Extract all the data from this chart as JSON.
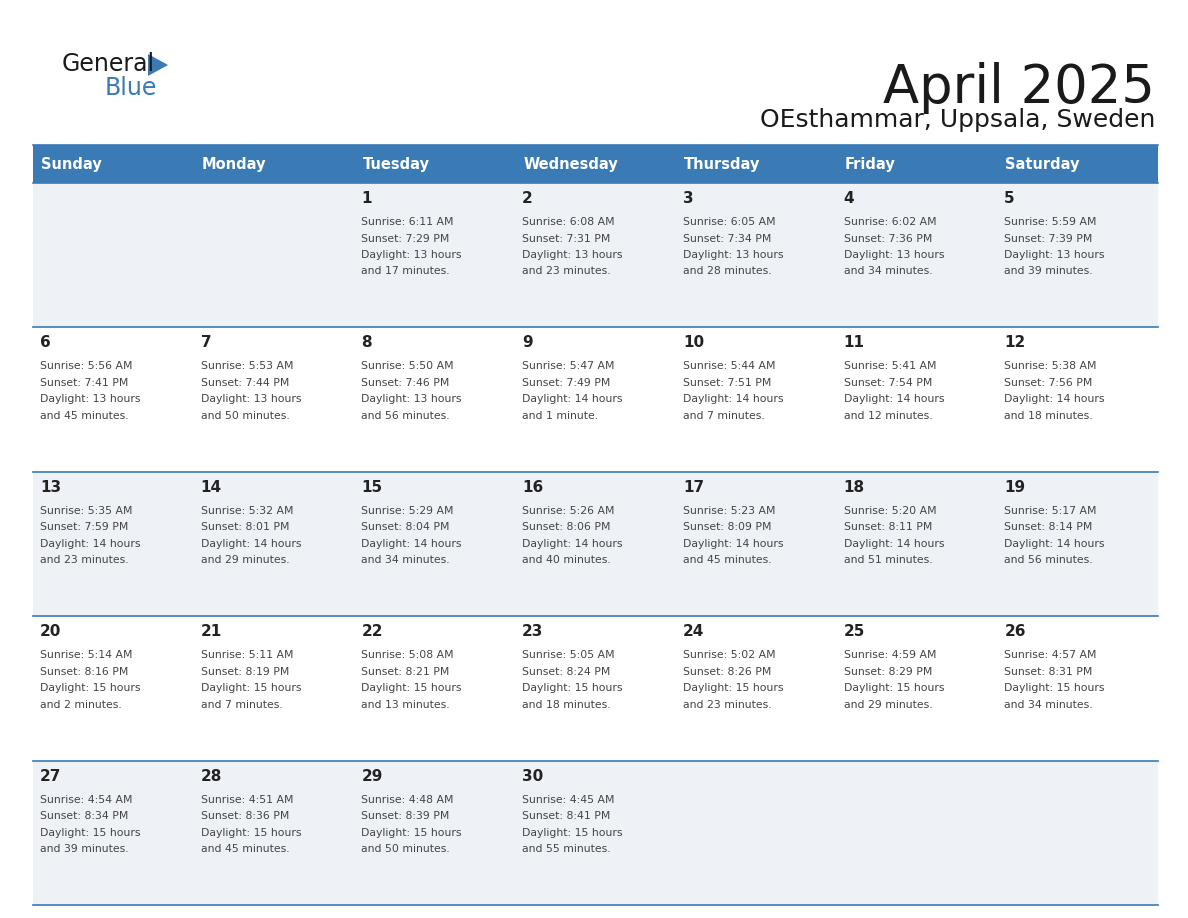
{
  "title": "April 2025",
  "subtitle": "OEsthammar, Uppsala, Sweden",
  "header_color": "#3a7ab5",
  "header_text_color": "#ffffff",
  "cell_bg_even": "#eef2f7",
  "cell_bg_odd": "#ffffff",
  "border_color": "#3a7ab5",
  "day_names": [
    "Sunday",
    "Monday",
    "Tuesday",
    "Wednesday",
    "Thursday",
    "Friday",
    "Saturday"
  ],
  "text_color": "#333333",
  "number_color": "#222222",
  "info_color": "#444444",
  "days": [
    {
      "date": 0,
      "col": 0,
      "row": 0,
      "sunrise": "",
      "sunset": "",
      "daylight": ""
    },
    {
      "date": 0,
      "col": 1,
      "row": 0,
      "sunrise": "",
      "sunset": "",
      "daylight": ""
    },
    {
      "date": 1,
      "col": 2,
      "row": 0,
      "sunrise": "6:11 AM",
      "sunset": "7:29 PM",
      "daylight": "13 hours and 17 minutes."
    },
    {
      "date": 2,
      "col": 3,
      "row": 0,
      "sunrise": "6:08 AM",
      "sunset": "7:31 PM",
      "daylight": "13 hours and 23 minutes."
    },
    {
      "date": 3,
      "col": 4,
      "row": 0,
      "sunrise": "6:05 AM",
      "sunset": "7:34 PM",
      "daylight": "13 hours and 28 minutes."
    },
    {
      "date": 4,
      "col": 5,
      "row": 0,
      "sunrise": "6:02 AM",
      "sunset": "7:36 PM",
      "daylight": "13 hours and 34 minutes."
    },
    {
      "date": 5,
      "col": 6,
      "row": 0,
      "sunrise": "5:59 AM",
      "sunset": "7:39 PM",
      "daylight": "13 hours and 39 minutes."
    },
    {
      "date": 6,
      "col": 0,
      "row": 1,
      "sunrise": "5:56 AM",
      "sunset": "7:41 PM",
      "daylight": "13 hours and 45 minutes."
    },
    {
      "date": 7,
      "col": 1,
      "row": 1,
      "sunrise": "5:53 AM",
      "sunset": "7:44 PM",
      "daylight": "13 hours and 50 minutes."
    },
    {
      "date": 8,
      "col": 2,
      "row": 1,
      "sunrise": "5:50 AM",
      "sunset": "7:46 PM",
      "daylight": "13 hours and 56 minutes."
    },
    {
      "date": 9,
      "col": 3,
      "row": 1,
      "sunrise": "5:47 AM",
      "sunset": "7:49 PM",
      "daylight": "14 hours and 1 minute."
    },
    {
      "date": 10,
      "col": 4,
      "row": 1,
      "sunrise": "5:44 AM",
      "sunset": "7:51 PM",
      "daylight": "14 hours and 7 minutes."
    },
    {
      "date": 11,
      "col": 5,
      "row": 1,
      "sunrise": "5:41 AM",
      "sunset": "7:54 PM",
      "daylight": "14 hours and 12 minutes."
    },
    {
      "date": 12,
      "col": 6,
      "row": 1,
      "sunrise": "5:38 AM",
      "sunset": "7:56 PM",
      "daylight": "14 hours and 18 minutes."
    },
    {
      "date": 13,
      "col": 0,
      "row": 2,
      "sunrise": "5:35 AM",
      "sunset": "7:59 PM",
      "daylight": "14 hours and 23 minutes."
    },
    {
      "date": 14,
      "col": 1,
      "row": 2,
      "sunrise": "5:32 AM",
      "sunset": "8:01 PM",
      "daylight": "14 hours and 29 minutes."
    },
    {
      "date": 15,
      "col": 2,
      "row": 2,
      "sunrise": "5:29 AM",
      "sunset": "8:04 PM",
      "daylight": "14 hours and 34 minutes."
    },
    {
      "date": 16,
      "col": 3,
      "row": 2,
      "sunrise": "5:26 AM",
      "sunset": "8:06 PM",
      "daylight": "14 hours and 40 minutes."
    },
    {
      "date": 17,
      "col": 4,
      "row": 2,
      "sunrise": "5:23 AM",
      "sunset": "8:09 PM",
      "daylight": "14 hours and 45 minutes."
    },
    {
      "date": 18,
      "col": 5,
      "row": 2,
      "sunrise": "5:20 AM",
      "sunset": "8:11 PM",
      "daylight": "14 hours and 51 minutes."
    },
    {
      "date": 19,
      "col": 6,
      "row": 2,
      "sunrise": "5:17 AM",
      "sunset": "8:14 PM",
      "daylight": "14 hours and 56 minutes."
    },
    {
      "date": 20,
      "col": 0,
      "row": 3,
      "sunrise": "5:14 AM",
      "sunset": "8:16 PM",
      "daylight": "15 hours and 2 minutes."
    },
    {
      "date": 21,
      "col": 1,
      "row": 3,
      "sunrise": "5:11 AM",
      "sunset": "8:19 PM",
      "daylight": "15 hours and 7 minutes."
    },
    {
      "date": 22,
      "col": 2,
      "row": 3,
      "sunrise": "5:08 AM",
      "sunset": "8:21 PM",
      "daylight": "15 hours and 13 minutes."
    },
    {
      "date": 23,
      "col": 3,
      "row": 3,
      "sunrise": "5:05 AM",
      "sunset": "8:24 PM",
      "daylight": "15 hours and 18 minutes."
    },
    {
      "date": 24,
      "col": 4,
      "row": 3,
      "sunrise": "5:02 AM",
      "sunset": "8:26 PM",
      "daylight": "15 hours and 23 minutes."
    },
    {
      "date": 25,
      "col": 5,
      "row": 3,
      "sunrise": "4:59 AM",
      "sunset": "8:29 PM",
      "daylight": "15 hours and 29 minutes."
    },
    {
      "date": 26,
      "col": 6,
      "row": 3,
      "sunrise": "4:57 AM",
      "sunset": "8:31 PM",
      "daylight": "15 hours and 34 minutes."
    },
    {
      "date": 27,
      "col": 0,
      "row": 4,
      "sunrise": "4:54 AM",
      "sunset": "8:34 PM",
      "daylight": "15 hours and 39 minutes."
    },
    {
      "date": 28,
      "col": 1,
      "row": 4,
      "sunrise": "4:51 AM",
      "sunset": "8:36 PM",
      "daylight": "15 hours and 45 minutes."
    },
    {
      "date": 29,
      "col": 2,
      "row": 4,
      "sunrise": "4:48 AM",
      "sunset": "8:39 PM",
      "daylight": "15 hours and 50 minutes."
    },
    {
      "date": 30,
      "col": 3,
      "row": 4,
      "sunrise": "4:45 AM",
      "sunset": "8:41 PM",
      "daylight": "15 hours and 55 minutes."
    },
    {
      "date": 0,
      "col": 4,
      "row": 4,
      "sunrise": "",
      "sunset": "",
      "daylight": ""
    },
    {
      "date": 0,
      "col": 5,
      "row": 4,
      "sunrise": "",
      "sunset": "",
      "daylight": ""
    },
    {
      "date": 0,
      "col": 6,
      "row": 4,
      "sunrise": "",
      "sunset": "",
      "daylight": ""
    }
  ],
  "logo_color_general": "#1a1a1a",
  "logo_color_blue": "#3a7ab5"
}
